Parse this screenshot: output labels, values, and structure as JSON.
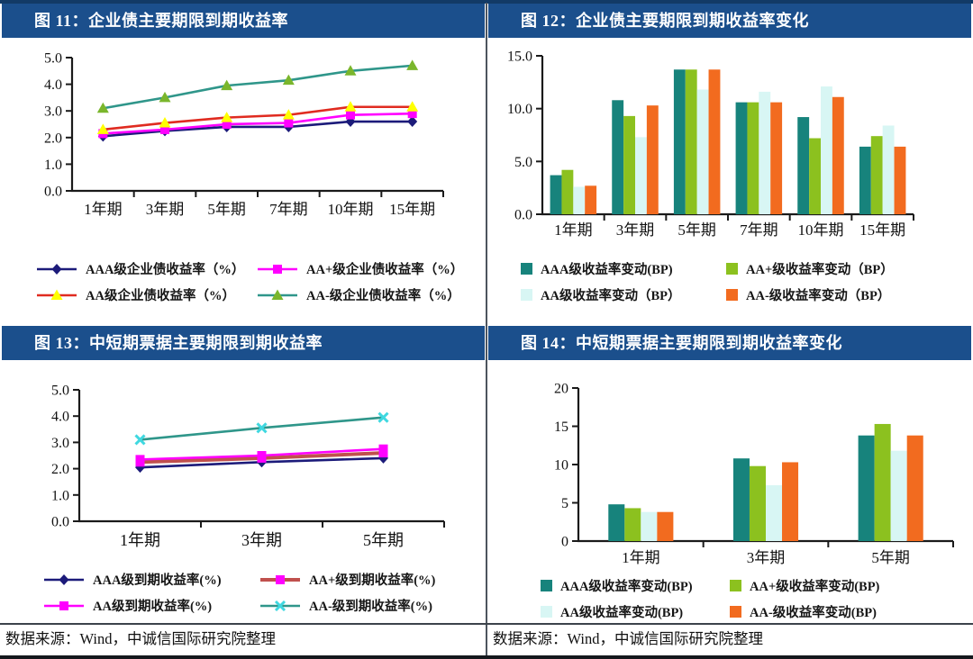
{
  "page": {
    "header_bg": "#1b4f8c",
    "header_text_color": "#ffffff",
    "top_rule_color": "#123a66",
    "divider_color": "#4d555e",
    "axis_color": "#1a1a1a"
  },
  "footer": {
    "left": "数据来源：Wind，中诚信国际研究院整理",
    "right": "数据来源：Wind，中诚信国际研究院整理"
  },
  "chart_data": [
    {
      "type": "line",
      "title": "图 11：企业债主要期限到期收益率",
      "categories": [
        "1年期",
        "3年期",
        "5年期",
        "7年期",
        "10年期",
        "15年期"
      ],
      "ylim": [
        0.0,
        5.0
      ],
      "yticks": [
        0,
        1,
        2,
        3,
        4,
        5
      ],
      "ytick_labels": [
        "0.0",
        "1.0",
        "2.0",
        "3.0",
        "4.0",
        "5.0"
      ],
      "grid": false,
      "legend_position": "bottom",
      "series": [
        {
          "name": "AAA级企业债收益率（%）",
          "line_color": "#1c1b7a",
          "marker": "diamond",
          "marker_color": "#1c1b7a",
          "values": [
            2.05,
            2.25,
            2.4,
            2.4,
            2.6,
            2.6
          ]
        },
        {
          "name": "AA+级企业债收益率（%）",
          "line_color": "#ff00ff",
          "marker": "square",
          "marker_color": "#ff00ff",
          "values": [
            2.15,
            2.3,
            2.5,
            2.55,
            2.85,
            2.9
          ]
        },
        {
          "name": "AA级企业债收益率（%）",
          "line_color": "#e02b20",
          "marker": "triangle",
          "marker_color": "#ffff00",
          "values": [
            2.3,
            2.55,
            2.75,
            2.85,
            3.15,
            3.15
          ]
        },
        {
          "name": "AA-级企业债收益率（%）",
          "line_color": "#2f968a",
          "marker": "triangle",
          "marker_color": "#7ab62c",
          "values": [
            3.1,
            3.5,
            3.95,
            4.15,
            4.5,
            4.7
          ]
        }
      ]
    },
    {
      "type": "bar",
      "title": "图 12：企业债主要期限到期收益率变化",
      "categories": [
        "1年期",
        "3年期",
        "5年期",
        "7年期",
        "10年期",
        "15年期"
      ],
      "ylim": [
        0.0,
        15.0
      ],
      "yticks": [
        0,
        5,
        10,
        15
      ],
      "ytick_labels": [
        "0.0",
        "5.0",
        "10.0",
        "15.0"
      ],
      "grid": false,
      "legend_position": "bottom",
      "series": [
        {
          "name": "AAA级收益率变动(BP)",
          "color": "#17837c",
          "values": [
            3.7,
            10.8,
            13.7,
            10.6,
            9.2,
            6.4
          ]
        },
        {
          "name": "AA+级收益率变动（BP）",
          "color": "#8cc11f",
          "values": [
            4.2,
            9.3,
            13.7,
            10.6,
            7.2,
            7.4
          ]
        },
        {
          "name": "AA级收益率变动（BP）",
          "color": "#d8f6f4",
          "values": [
            2.6,
            7.3,
            11.8,
            11.6,
            12.1,
            8.4
          ]
        },
        {
          "name": "AA-级收益率变动（BP）",
          "color": "#f26b1f",
          "values": [
            2.7,
            10.3,
            13.7,
            10.6,
            11.1,
            6.4
          ]
        }
      ]
    },
    {
      "type": "line",
      "title": "图 13：中短期票据主要期限到期收益率",
      "categories": [
        "1年期",
        "3年期",
        "5年期"
      ],
      "ylim": [
        0.0,
        5.0
      ],
      "yticks": [
        0,
        1,
        2,
        3,
        4,
        5
      ],
      "ytick_labels": [
        "0.0",
        "1.0",
        "2.0",
        "3.0",
        "4.0",
        "5.0"
      ],
      "grid": false,
      "legend_position": "bottom",
      "series": [
        {
          "name": "AAA级到期收益率(%)",
          "line_color": "#1c1b7a",
          "marker": "diamond",
          "marker_color": "#1c1b7a",
          "values": [
            2.05,
            2.25,
            2.4
          ]
        },
        {
          "name": "AA+级到期收益率(%)",
          "line_color": "#c0504d",
          "line_width": 4,
          "marker": "square",
          "marker_color": "#ff00ff",
          "values": [
            2.25,
            2.4,
            2.6
          ]
        },
        {
          "name": "AA级到期收益率(%)",
          "line_color": "#ff00ff",
          "marker": "square",
          "marker_color": "#ff00ff",
          "values": [
            2.35,
            2.5,
            2.75
          ]
        },
        {
          "name": "AA-级到期收益率(%)",
          "line_color": "#2f968a",
          "marker": "x",
          "marker_color": "#3fd8e0",
          "values": [
            3.1,
            3.55,
            3.95
          ]
        }
      ]
    },
    {
      "type": "bar",
      "title": "图 14：中短期票据主要期限到期收益率变化",
      "categories": [
        "1年期",
        "3年期",
        "5年期"
      ],
      "ylim": [
        0,
        20
      ],
      "yticks": [
        0,
        5,
        10,
        15,
        20
      ],
      "ytick_labels": [
        "0",
        "5",
        "10",
        "15",
        "20"
      ],
      "grid": false,
      "legend_position": "bottom",
      "series": [
        {
          "name": "AAA级收益率变动(BP)",
          "color": "#17837c",
          "values": [
            4.8,
            10.8,
            13.8
          ]
        },
        {
          "name": "AA+级收益率变动(BP)",
          "color": "#8cc11f",
          "values": [
            4.3,
            9.8,
            15.3
          ]
        },
        {
          "name": "AA级收益率变动(BP)",
          "color": "#d8f6f4",
          "values": [
            3.8,
            7.3,
            11.8
          ]
        },
        {
          "name": "AA-级收益率变动(BP)",
          "color": "#f26b1f",
          "values": [
            3.8,
            10.3,
            13.8
          ]
        }
      ]
    }
  ]
}
